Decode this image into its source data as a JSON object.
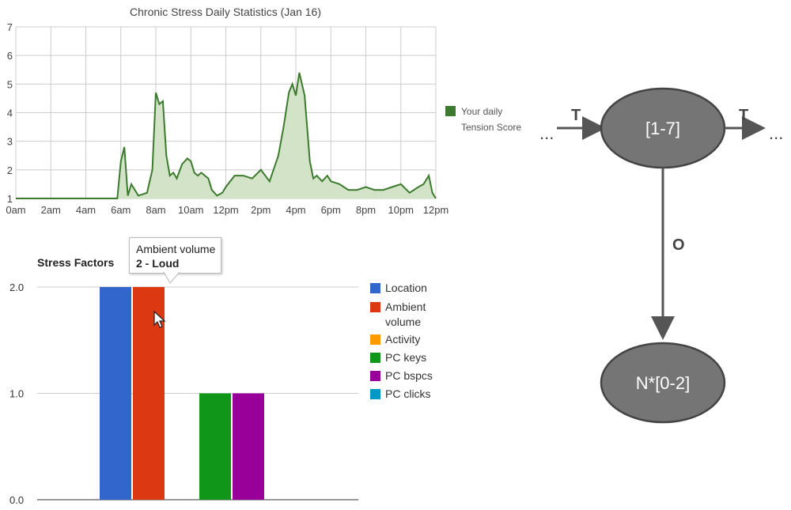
{
  "chart_data": [
    {
      "type": "area",
      "title": "Chronic Stress Daily Statistics (Jan 16)",
      "categories": [
        "0am",
        "2am",
        "4am",
        "6am",
        "8am",
        "10am",
        "12pm",
        "2pm",
        "4pm",
        "6pm",
        "8pm",
        "10pm",
        "12pm"
      ],
      "x": [
        0,
        1,
        2,
        3,
        4,
        5,
        5.8,
        6,
        6.2,
        6.4,
        6.6,
        7,
        7.5,
        7.8,
        8,
        8.2,
        8.4,
        8.6,
        8.8,
        9,
        9.2,
        9.5,
        9.8,
        10,
        10.2,
        10.4,
        10.6,
        11,
        11.2,
        11.5,
        11.8,
        12,
        12.5,
        13,
        13.5,
        14,
        14.5,
        15,
        15.3,
        15.6,
        15.8,
        16,
        16.2,
        16.5,
        16.8,
        17,
        17.2,
        17.5,
        17.8,
        18,
        18.5,
        19,
        19.5,
        20,
        20.5,
        21,
        21.5,
        22,
        22.5,
        23,
        23.3,
        23.6,
        23.8,
        24
      ],
      "values": [
        1,
        1,
        1,
        1,
        1,
        1,
        1,
        2.3,
        2.8,
        1.1,
        1.5,
        1.1,
        1.2,
        2.0,
        4.7,
        4.3,
        4.4,
        2.5,
        1.8,
        1.9,
        1.7,
        2.2,
        2.4,
        2.3,
        1.9,
        1.8,
        1.9,
        1.7,
        1.3,
        1.1,
        1.2,
        1.4,
        1.8,
        1.8,
        1.7,
        2.0,
        1.6,
        2.5,
        3.5,
        4.7,
        5.0,
        4.6,
        5.4,
        4.6,
        2.3,
        1.7,
        1.8,
        1.6,
        1.8,
        1.6,
        1.5,
        1.3,
        1.3,
        1.4,
        1.3,
        1.3,
        1.4,
        1.5,
        1.2,
        1.4,
        1.5,
        1.8,
        1.2,
        1.0
      ],
      "ylim": [
        1,
        7
      ],
      "yticks": [
        1,
        2,
        3,
        4,
        5,
        6,
        7
      ],
      "series_color": "#3c7a2e",
      "fill_color": "#d3e3c7",
      "legend": {
        "label_line1": "Your daily",
        "label_line2": "Tension Score",
        "color": "#3c7a2e"
      },
      "grid": true
    },
    {
      "type": "bar",
      "title": "Stress Factors",
      "series": [
        {
          "name": "Location",
          "value": 2,
          "color": "#3366cc"
        },
        {
          "name": "Ambient volume",
          "value": 2,
          "color": "#dc3912"
        },
        {
          "name": "Activity",
          "value": 0,
          "color": "#ff9900"
        },
        {
          "name": "PC keys",
          "value": 1,
          "color": "#109618"
        },
        {
          "name": "PC bspcs",
          "value": 1,
          "color": "#990099"
        },
        {
          "name": "PC clicks",
          "value": 0,
          "color": "#0099c6"
        }
      ],
      "legend_lines": [
        [
          "Location"
        ],
        [
          "Ambient",
          "volume"
        ],
        [
          "Activity"
        ],
        [
          "PC keys"
        ],
        [
          "PC bspcs"
        ],
        [
          "PC clicks"
        ]
      ],
      "ylim": [
        0,
        2
      ],
      "yticks": [
        "0.0",
        "1.0",
        "2.0"
      ],
      "tooltip": {
        "line1": "Ambient volume",
        "line2": "2 - Loud"
      }
    }
  ],
  "diagram": {
    "state_node": "[1-7]",
    "obs_node": "N*[0-2]",
    "edge_in_label": "T",
    "edge_out_label": "T",
    "edge_down_label": "O",
    "ellipsis_left": "...",
    "ellipsis_right": "...",
    "node_color": "#757575",
    "edge_color": "#555555"
  }
}
